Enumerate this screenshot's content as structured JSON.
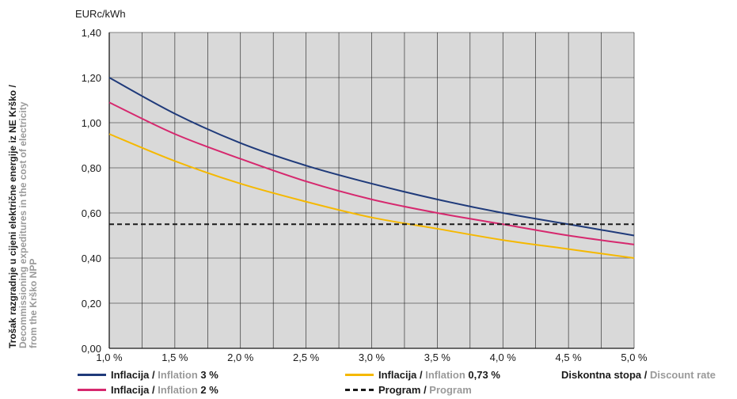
{
  "chart_data": {
    "type": "line",
    "unit_label": "EURc/kWh",
    "ylabel_primary": "Trošak razgradnje u cijeni električne energije iz NE Krško /",
    "ylabel_secondary_1": "Decommissioning expeditures in the cost of electricity",
    "ylabel_secondary_2": "from the Krško NPP",
    "x_ticks": [
      "1,0 %",
      "1,5 %",
      "2,0 %",
      "2,5 %",
      "3,0 %",
      "3,5 %",
      "4,0 %",
      "4,5 %",
      "5,0 %"
    ],
    "y_ticks": [
      "0,00",
      "0,20",
      "0,40",
      "0,60",
      "0,80",
      "1,00",
      "1,20",
      "1,40"
    ],
    "x": [
      1.0,
      1.5,
      2.0,
      2.5,
      3.0,
      3.5,
      4.0,
      4.5,
      5.0
    ],
    "xlim": [
      1.0,
      5.0
    ],
    "ylim": [
      0.0,
      1.4
    ],
    "grid": true,
    "series": [
      {
        "name": "Inflacija / Inflation 3 %",
        "color": "#1f3a7a",
        "style": "solid",
        "values": [
          1.2,
          1.04,
          0.91,
          0.81,
          0.73,
          0.66,
          0.6,
          0.55,
          0.5
        ]
      },
      {
        "name": "Inflacija / Inflation 2 %",
        "color": "#d6286e",
        "style": "solid",
        "values": [
          1.09,
          0.95,
          0.84,
          0.74,
          0.66,
          0.6,
          0.55,
          0.5,
          0.46
        ]
      },
      {
        "name": "Inflacija / Inflation 0,73 %",
        "color": "#f5b800",
        "style": "solid",
        "values": [
          0.95,
          0.83,
          0.73,
          0.65,
          0.58,
          0.53,
          0.48,
          0.44,
          0.4
        ]
      },
      {
        "name": "Program / Program",
        "color": "#1a1a1a",
        "style": "dashed",
        "values": [
          0.55,
          0.55,
          0.55,
          0.55,
          0.55,
          0.55,
          0.55,
          0.55,
          0.55
        ]
      }
    ],
    "legend": {
      "infl3_a": "Inflacija / ",
      "infl3_b": "Inflation ",
      "infl3_c": "3 %",
      "infl2_a": "Inflacija / ",
      "infl2_b": "Inflation ",
      "infl2_c": "2 %",
      "infl073_a": "Inflacija / ",
      "infl073_b": "Inflation ",
      "infl073_c": "0,73 %",
      "prog_a": "Program / ",
      "prog_b": "Program",
      "disc_a": "Diskontna stopa / ",
      "disc_b": "Discount rate"
    }
  }
}
